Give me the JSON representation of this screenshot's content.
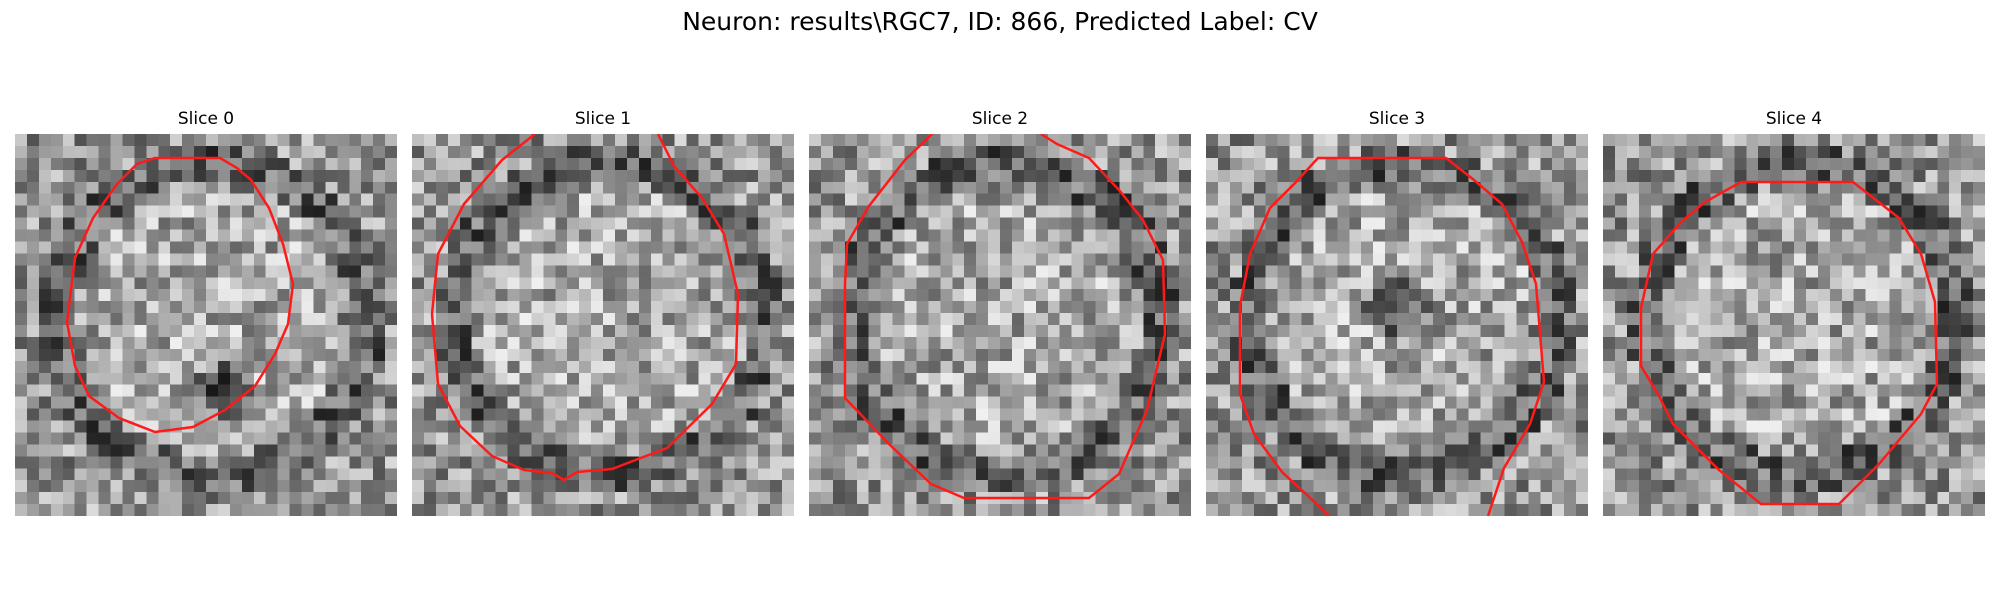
{
  "figure": {
    "suptitle": "Neuron: results\\RGC7, ID: 866, Predicted Label: CV",
    "outline_color": "#ff1a1a",
    "panels": [
      {
        "title": "Slice 0",
        "seed": 11,
        "dark_spot": true
      },
      {
        "title": "Slice 1",
        "seed": 23,
        "dark_spot": false
      },
      {
        "title": "Slice 2",
        "seed": 37,
        "dark_spot": false
      },
      {
        "title": "Slice 3",
        "seed": 41,
        "dark_spot": true
      },
      {
        "title": "Slice 4",
        "seed": 59,
        "dark_spot": false
      }
    ]
  }
}
